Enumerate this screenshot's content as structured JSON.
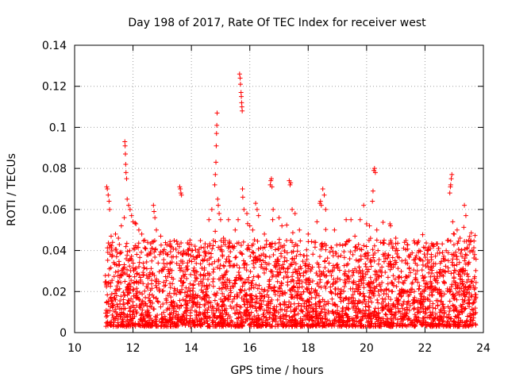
{
  "chart_data": {
    "type": "scatter",
    "title": "Day 198 of 2017, Rate Of TEC Index for receiver west",
    "xlabel": "GPS time / hours",
    "ylabel": "ROTI / TECUs",
    "xlim": [
      10,
      24
    ],
    "ylim": [
      0,
      0.14
    ],
    "x_ticks": [
      10,
      12,
      14,
      16,
      18,
      20,
      22,
      24
    ],
    "x_tick_labels": [
      "10",
      "12",
      "14",
      "16",
      "18",
      "20",
      "22",
      "24"
    ],
    "y_ticks": [
      0,
      0.02,
      0.04,
      0.06,
      0.08,
      0.1,
      0.12,
      0.14
    ],
    "y_tick_labels": [
      "0",
      "0.02",
      "0.04",
      "0.06",
      "0.08",
      "0.1",
      "0.12",
      "0.14"
    ],
    "grid": true,
    "marker": "+",
    "color": "#ff0000",
    "series": [
      {
        "name": "ROTI",
        "x_range": [
          11.05,
          23.75
        ],
        "typical_range": [
          0.003,
          0.045
        ],
        "points": [
          [
            11.1,
            0.071
          ],
          [
            11.12,
            0.07
          ],
          [
            11.15,
            0.067
          ],
          [
            11.18,
            0.064
          ],
          [
            11.2,
            0.06
          ],
          [
            11.25,
            0.047
          ],
          [
            11.3,
            0.044
          ],
          [
            11.4,
            0.048
          ],
          [
            11.5,
            0.046
          ],
          [
            11.6,
            0.052
          ],
          [
            11.7,
            0.056
          ],
          [
            11.72,
            0.093
          ],
          [
            11.73,
            0.091
          ],
          [
            11.74,
            0.087
          ],
          [
            11.75,
            0.082
          ],
          [
            11.76,
            0.078
          ],
          [
            11.78,
            0.075
          ],
          [
            11.8,
            0.065
          ],
          [
            11.85,
            0.062
          ],
          [
            11.9,
            0.06
          ],
          [
            11.95,
            0.057
          ],
          [
            12.0,
            0.054
          ],
          [
            12.1,
            0.053
          ],
          [
            12.2,
            0.05
          ],
          [
            12.3,
            0.048
          ],
          [
            12.4,
            0.045
          ],
          [
            12.5,
            0.044
          ],
          [
            12.7,
            0.062
          ],
          [
            12.72,
            0.059
          ],
          [
            12.75,
            0.056
          ],
          [
            12.8,
            0.05
          ],
          [
            12.95,
            0.047
          ],
          [
            13.2,
            0.038
          ],
          [
            13.6,
            0.071
          ],
          [
            13.62,
            0.07
          ],
          [
            13.64,
            0.068
          ],
          [
            13.66,
            0.067
          ],
          [
            13.9,
            0.038
          ],
          [
            14.2,
            0.037
          ],
          [
            14.4,
            0.035
          ],
          [
            14.6,
            0.055
          ],
          [
            14.7,
            0.06
          ],
          [
            14.8,
            0.072
          ],
          [
            14.82,
            0.077
          ],
          [
            14.84,
            0.083
          ],
          [
            14.85,
            0.091
          ],
          [
            14.86,
            0.097
          ],
          [
            14.87,
            0.101
          ],
          [
            14.88,
            0.107
          ],
          [
            14.9,
            0.065
          ],
          [
            14.92,
            0.062
          ],
          [
            14.95,
            0.058
          ],
          [
            15.0,
            0.055
          ],
          [
            15.1,
            0.046
          ],
          [
            15.3,
            0.042
          ],
          [
            15.5,
            0.05
          ],
          [
            15.6,
            0.055
          ],
          [
            15.65,
            0.126
          ],
          [
            15.67,
            0.124
          ],
          [
            15.68,
            0.121
          ],
          [
            15.7,
            0.117
          ],
          [
            15.71,
            0.115
          ],
          [
            15.72,
            0.112
          ],
          [
            15.73,
            0.11
          ],
          [
            15.74,
            0.108
          ],
          [
            15.75,
            0.07
          ],
          [
            15.76,
            0.066
          ],
          [
            15.8,
            0.06
          ],
          [
            15.9,
            0.058
          ],
          [
            16.0,
            0.052
          ],
          [
            16.1,
            0.05
          ],
          [
            16.2,
            0.063
          ],
          [
            16.25,
            0.06
          ],
          [
            16.3,
            0.057
          ],
          [
            16.5,
            0.048
          ],
          [
            16.7,
            0.072
          ],
          [
            16.72,
            0.074
          ],
          [
            16.74,
            0.075
          ],
          [
            16.76,
            0.071
          ],
          [
            16.8,
            0.06
          ],
          [
            17.0,
            0.056
          ],
          [
            17.1,
            0.052
          ],
          [
            17.35,
            0.074
          ],
          [
            17.38,
            0.072
          ],
          [
            17.4,
            0.073
          ],
          [
            17.45,
            0.06
          ],
          [
            17.55,
            0.058
          ],
          [
            17.7,
            0.05
          ],
          [
            18.0,
            0.048
          ],
          [
            18.3,
            0.054
          ],
          [
            18.4,
            0.063
          ],
          [
            18.42,
            0.064
          ],
          [
            18.45,
            0.062
          ],
          [
            18.5,
            0.07
          ],
          [
            18.55,
            0.067
          ],
          [
            18.6,
            0.06
          ],
          [
            18.9,
            0.05
          ],
          [
            19.3,
            0.055
          ],
          [
            19.6,
            0.047
          ],
          [
            19.9,
            0.062
          ],
          [
            20.0,
            0.053
          ],
          [
            20.1,
            0.052
          ],
          [
            20.2,
            0.064
          ],
          [
            20.22,
            0.069
          ],
          [
            20.25,
            0.079
          ],
          [
            20.27,
            0.08
          ],
          [
            20.3,
            0.078
          ],
          [
            20.35,
            0.05
          ],
          [
            20.6,
            0.045
          ],
          [
            20.8,
            0.053
          ],
          [
            20.82,
            0.052
          ],
          [
            21.0,
            0.046
          ],
          [
            21.3,
            0.044
          ],
          [
            21.5,
            0.038
          ],
          [
            21.8,
            0.036
          ],
          [
            22.1,
            0.04
          ],
          [
            22.3,
            0.042
          ],
          [
            22.6,
            0.039
          ],
          [
            22.8,
            0.045
          ],
          [
            22.85,
            0.068
          ],
          [
            22.87,
            0.071
          ],
          [
            22.88,
            0.072
          ],
          [
            22.9,
            0.075
          ],
          [
            22.92,
            0.077
          ],
          [
            22.95,
            0.054
          ],
          [
            23.0,
            0.048
          ],
          [
            23.1,
            0.05
          ],
          [
            23.2,
            0.046
          ],
          [
            23.35,
            0.062
          ],
          [
            23.4,
            0.057
          ],
          [
            23.5,
            0.045
          ],
          [
            23.6,
            0.04
          ],
          [
            23.7,
            0.038
          ]
        ]
      }
    ]
  }
}
